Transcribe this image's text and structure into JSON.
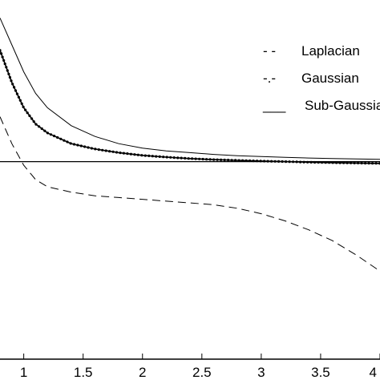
{
  "chart_data": {
    "type": "line",
    "xlim": [
      0.8,
      4.0
    ],
    "ylim": [
      -1.1,
      0.9
    ],
    "x_ticks": [
      {
        "value": 1,
        "label": "1"
      },
      {
        "value": 1.5,
        "label": "1.5"
      },
      {
        "value": 2,
        "label": "2"
      },
      {
        "value": 2.5,
        "label": "2.5"
      },
      {
        "value": 3,
        "label": "3"
      },
      {
        "value": 3.5,
        "label": "3.5"
      },
      {
        "value": 4,
        "label": "4"
      }
    ],
    "reference_line_y": 0,
    "grid": false,
    "legend_position": "top-right",
    "legend": [
      {
        "marker": "- -",
        "label": "Laplacian"
      },
      {
        "marker": "-.-",
        "label": "Gaussian"
      },
      {
        "marker": "___",
        "label": "Sub-Gaussian"
      }
    ],
    "series": [
      {
        "name": "Laplacian",
        "style": "dashed",
        "x": [
          0.8,
          0.9,
          1.0,
          1.1,
          1.2,
          1.4,
          1.6,
          1.8,
          2.0,
          2.2,
          2.4,
          2.6,
          2.8,
          3.0,
          3.2,
          3.4,
          3.6,
          3.8,
          4.0
        ],
        "y": [
          0.25,
          0.1,
          -0.02,
          -0.1,
          -0.14,
          -0.17,
          -0.19,
          -0.2,
          -0.21,
          -0.22,
          -0.23,
          -0.24,
          -0.26,
          -0.29,
          -0.33,
          -0.38,
          -0.44,
          -0.52,
          -0.61
        ]
      },
      {
        "name": "Gaussian",
        "style": "dotted-marker",
        "x": [
          0.8,
          0.9,
          1.0,
          1.1,
          1.2,
          1.4,
          1.6,
          1.8,
          2.0,
          2.2,
          2.4,
          2.6,
          2.8,
          3.0,
          3.2,
          3.4,
          3.6,
          3.8,
          4.0
        ],
        "y": [
          0.62,
          0.44,
          0.3,
          0.21,
          0.16,
          0.1,
          0.07,
          0.05,
          0.035,
          0.025,
          0.017,
          0.011,
          0.007,
          0.003,
          0.0,
          -0.003,
          -0.006,
          -0.008,
          -0.01
        ]
      },
      {
        "name": "Sub-Gaussian",
        "style": "solid",
        "x": [
          0.8,
          0.9,
          1.0,
          1.1,
          1.2,
          1.4,
          1.6,
          1.8,
          2.0,
          2.2,
          2.4,
          2.6,
          2.8,
          3.0,
          3.2,
          3.4,
          3.6,
          3.8,
          4.0
        ],
        "y": [
          0.8,
          0.65,
          0.5,
          0.38,
          0.3,
          0.2,
          0.14,
          0.1,
          0.075,
          0.06,
          0.05,
          0.04,
          0.033,
          0.028,
          0.024,
          0.02,
          0.017,
          0.015,
          0.013
        ]
      }
    ]
  }
}
